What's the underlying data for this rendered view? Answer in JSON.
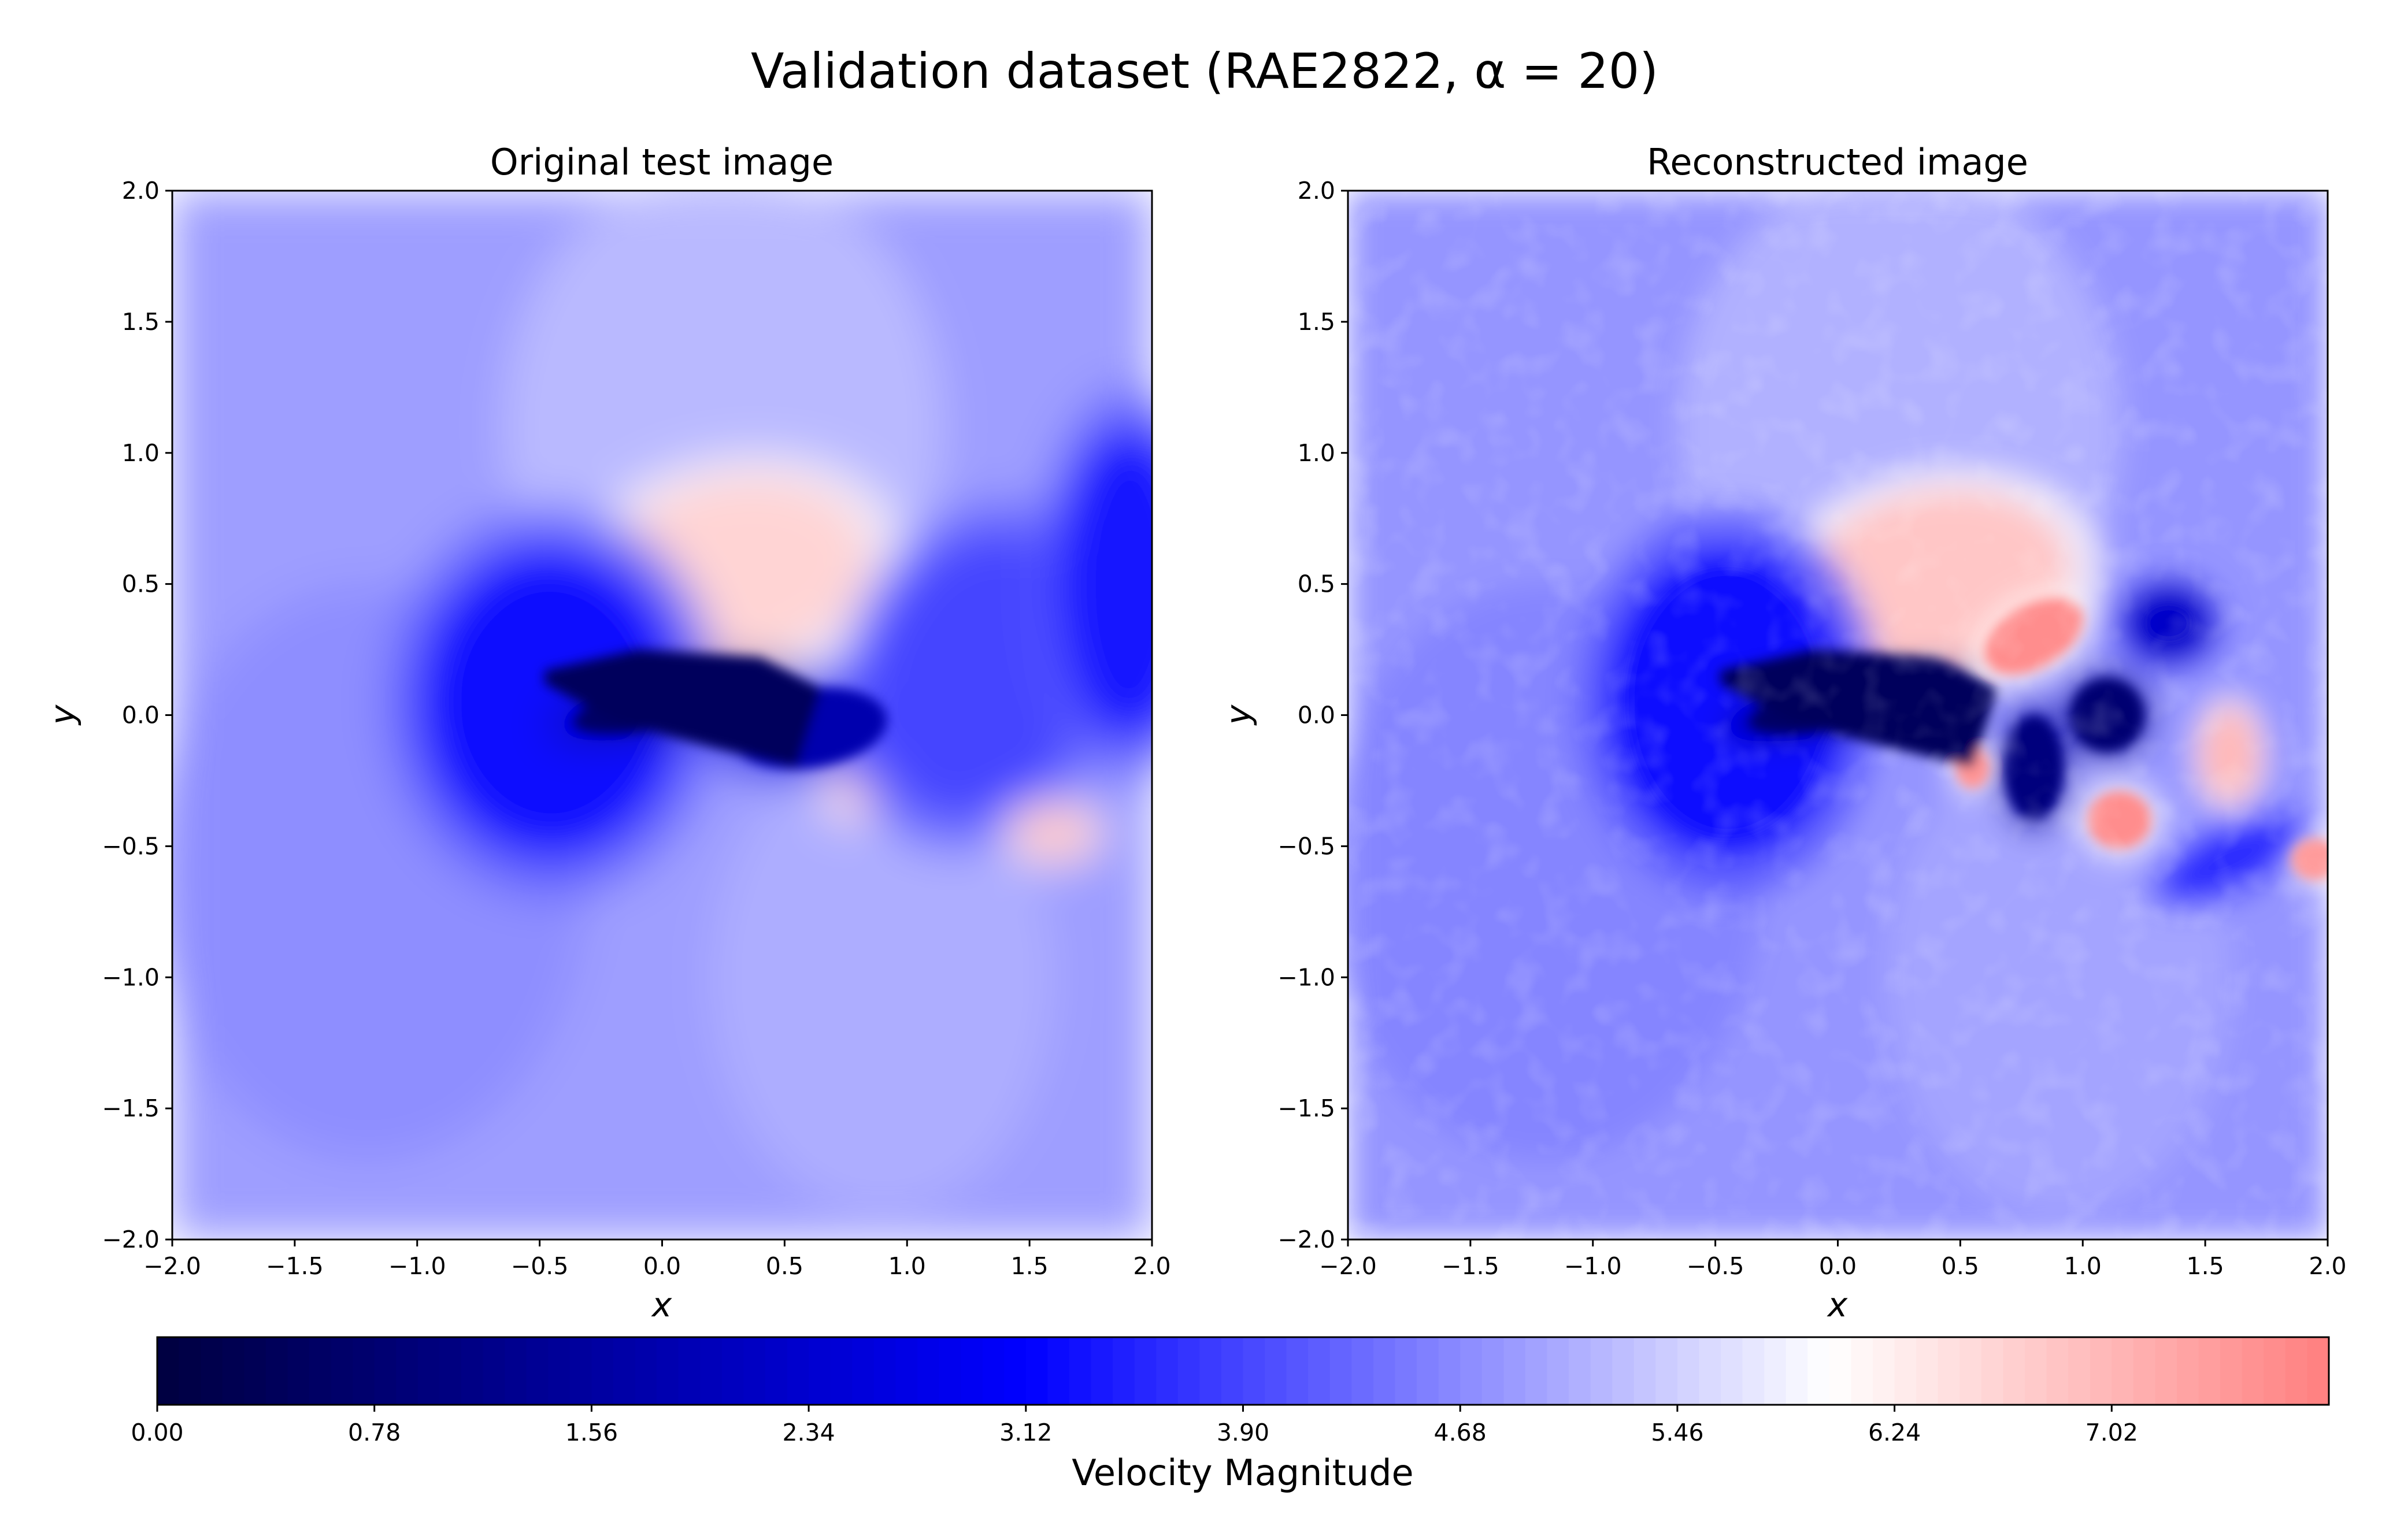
{
  "figure": {
    "suptitle": "Validation dataset (RAE2822, α = 20)"
  },
  "chart_data": [
    {
      "type": "heatmap",
      "title": "Original test image",
      "xlabel": "x",
      "ylabel": "y",
      "xlim": [
        -2.0,
        2.0
      ],
      "ylim": [
        -2.0,
        2.0
      ],
      "xticks": [
        "−2.0",
        "−1.5",
        "−1.0",
        "−0.5",
        "0.0",
        "0.5",
        "1.0",
        "1.5",
        "2.0"
      ],
      "yticks": [
        "−2.0",
        "−1.5",
        "−1.0",
        "−0.5",
        "0.0",
        "0.5",
        "1.0",
        "1.5",
        "2.0"
      ],
      "features": [
        {
          "kind": "background",
          "value": 4.9
        },
        {
          "kind": "high",
          "x": 0.3,
          "y": 0.55,
          "value": 6.6
        },
        {
          "kind": "low",
          "x": -0.45,
          "y": 0.05,
          "value": 3.3
        },
        {
          "kind": "low",
          "x": 0.05,
          "y": 0.05,
          "value": 0.6
        },
        {
          "kind": "low",
          "x": 0.6,
          "y": -0.05,
          "value": 1.8
        },
        {
          "kind": "high",
          "x": 0.8,
          "y": -0.3,
          "value": 6.6
        },
        {
          "kind": "low",
          "x": 1.3,
          "y": 0.15,
          "value": 3.9
        },
        {
          "kind": "low",
          "x": 1.9,
          "y": 0.5,
          "value": 3.4
        },
        {
          "kind": "high",
          "x": 1.6,
          "y": -0.45,
          "value": 6.8
        }
      ]
    },
    {
      "type": "heatmap",
      "title": "Reconstructed image",
      "xlabel": "x",
      "ylabel": "y",
      "xlim": [
        -2.0,
        2.0
      ],
      "ylim": [
        -2.0,
        2.0
      ],
      "xticks": [
        "−2.0",
        "−1.5",
        "−1.0",
        "−0.5",
        "0.0",
        "0.5",
        "1.0",
        "1.5",
        "2.0"
      ],
      "yticks": [
        "−2.0",
        "−1.5",
        "−1.0",
        "−0.5",
        "0.0",
        "0.5",
        "1.0",
        "1.5",
        "2.0"
      ],
      "features": [
        {
          "kind": "background",
          "value": 4.8
        },
        {
          "kind": "high",
          "x": 0.4,
          "y": 0.5,
          "value": 6.8
        },
        {
          "kind": "high",
          "x": 0.8,
          "y": 0.3,
          "value": 7.6
        },
        {
          "kind": "low",
          "x": -0.45,
          "y": 0.05,
          "value": 3.2
        },
        {
          "kind": "low",
          "x": 0.05,
          "y": 0.05,
          "value": 0.6
        },
        {
          "kind": "low",
          "x": 0.8,
          "y": -0.2,
          "value": 1.0
        },
        {
          "kind": "low",
          "x": 1.1,
          "y": 0.0,
          "value": 0.8
        },
        {
          "kind": "low",
          "x": 1.35,
          "y": 0.35,
          "value": 2.2
        },
        {
          "kind": "high",
          "x": 0.55,
          "y": -0.2,
          "value": 7.5
        },
        {
          "kind": "high",
          "x": 1.15,
          "y": -0.4,
          "value": 7.6
        },
        {
          "kind": "high",
          "x": 1.6,
          "y": -0.15,
          "value": 7.0
        },
        {
          "kind": "high",
          "x": 1.95,
          "y": -0.55,
          "value": 7.4
        },
        {
          "kind": "low",
          "x": 1.6,
          "y": -0.55,
          "value": 3.6
        }
      ]
    }
  ],
  "colorbar": {
    "label": "Velocity Magnitude",
    "range": [
      0.0,
      7.8
    ],
    "ticks": [
      0.0,
      0.78,
      1.56,
      2.34,
      3.12,
      3.9,
      4.68,
      5.46,
      6.24,
      7.02
    ],
    "tick_labels": [
      "0.00",
      "0.78",
      "1.56",
      "2.34",
      "3.12",
      "3.90",
      "4.68",
      "5.46",
      "6.24",
      "7.02"
    ],
    "colormap": [
      {
        "value": 0.0,
        "color": "#000040"
      },
      {
        "value": 3.12,
        "color": "#0000ff"
      },
      {
        "value": 6.0,
        "color": "#ffffff"
      },
      {
        "value": 7.8,
        "color": "#ff7f7f"
      }
    ]
  }
}
